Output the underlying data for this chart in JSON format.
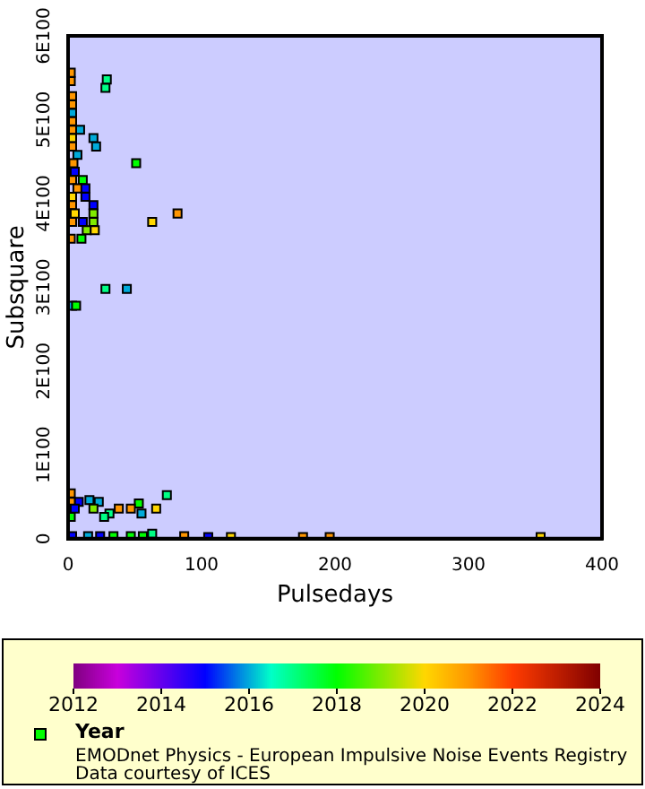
{
  "chart_data": {
    "type": "scatter",
    "xlabel": "Pulsedays",
    "ylabel": "Subsquare",
    "xlim": [
      0,
      400
    ],
    "xticks": [
      0,
      100,
      200,
      300,
      400
    ],
    "ylim": [
      0,
      6e+100
    ],
    "yticks": [
      0,
      {
        "value": 1e+100,
        "label": "1E100"
      },
      {
        "value": 2e+100,
        "label": "2E100"
      },
      {
        "value": 3e+100,
        "label": "3E100"
      },
      {
        "value": 4e+100,
        "label": "4E100"
      },
      {
        "value": 5e+100,
        "label": "5E100"
      },
      {
        "value": 6e+100,
        "label": "6E100"
      }
    ],
    "grid": false,
    "marker": "square",
    "legend": "bottom",
    "clim": [
      2012,
      2024
    ],
    "cticks": [
      2012,
      2014,
      2016,
      2018,
      2020,
      2022,
      2024
    ],
    "annotations": [
      "EMODnet Physics - European Impulsive Noise Events Registry",
      "Data courtesy of ICES"
    ],
    "series": [
      {
        "name": "Year",
        "x": [
          2,
          2,
          29,
          28,
          3,
          3,
          3,
          3,
          9,
          3,
          3,
          19,
          21,
          3,
          7,
          51,
          4,
          5,
          3,
          11,
          7,
          13,
          13,
          3,
          19,
          3,
          5,
          19,
          82,
          63,
          11,
          19,
          3,
          14,
          20,
          2,
          10,
          28,
          44,
          3,
          6,
          74,
          53,
          47,
          38,
          66,
          55,
          31,
          27,
          23,
          16,
          8,
          2,
          2,
          19,
          2,
          5,
          3,
          15,
          24,
          34,
          47,
          56,
          63,
          87,
          105,
          122,
          176,
          196,
          354
        ],
        "values": [
          5.56e+100,
          5.46e+100,
          5.48e+100,
          5.38e+100,
          5.28e+100,
          5.18e+100,
          5.08e+100,
          4.98e+100,
          4.88e+100,
          4.88e+100,
          4.78e+100,
          4.78e+100,
          4.68e+100,
          4.68e+100,
          4.58e+100,
          4.48e+100,
          4.48e+100,
          4.38e+100,
          4.28e+100,
          4.28e+100,
          4.18e+100,
          4.18e+100,
          4.08e+100,
          4.08e+100,
          3.98e+100,
          3.98e+100,
          3.88e+100,
          3.88e+100,
          3.88e+100,
          3.78e+100,
          3.78e+100,
          3.78e+100,
          3.78e+100,
          3.68e+100,
          3.68e+100,
          3.58e+100,
          3.58e+100,
          2.98e+100,
          2.98e+100,
          2.78e+100,
          2.78e+100,
          5.2e+99,
          4.2e+99,
          3.6e+99,
          3.6e+99,
          3.6e+99,
          3e+99,
          3e+99,
          2.6e+99,
          4.4e+99,
          4.6e+99,
          4.4e+99,
          4.4e+99,
          5.4e+99,
          3.6e+99,
          2.6e+99,
          3.6e+99,
          3e+98,
          3e+98,
          3e+98,
          3e+98,
          3e+98,
          3e+98,
          6e+98,
          3e+98,
          2e+98,
          2e+98,
          2e+98,
          2e+98,
          2e+98
        ],
        "cvalues": [
          2021,
          2021,
          2017,
          2017,
          2021,
          2021,
          2016,
          2021,
          2016,
          2021,
          2020,
          2016,
          2016,
          2021,
          2016,
          2018,
          2021,
          2015,
          2021,
          2018,
          2021,
          2015,
          2015,
          2020,
          2015,
          2021,
          2020,
          2019,
          2021,
          2020,
          2015,
          2019,
          2021,
          2019,
          2020,
          2021,
          2018,
          2017,
          2016,
          2016,
          2018,
          2017,
          2018,
          2021,
          2021,
          2020,
          2016,
          2017,
          2017,
          2016,
          2016,
          2015,
          2021,
          2021,
          2019,
          2018,
          2015,
          2015,
          2016,
          2015,
          2018,
          2018,
          2018,
          2017,
          2021,
          2015,
          2020,
          2021,
          2021,
          2020
        ]
      }
    ]
  }
}
